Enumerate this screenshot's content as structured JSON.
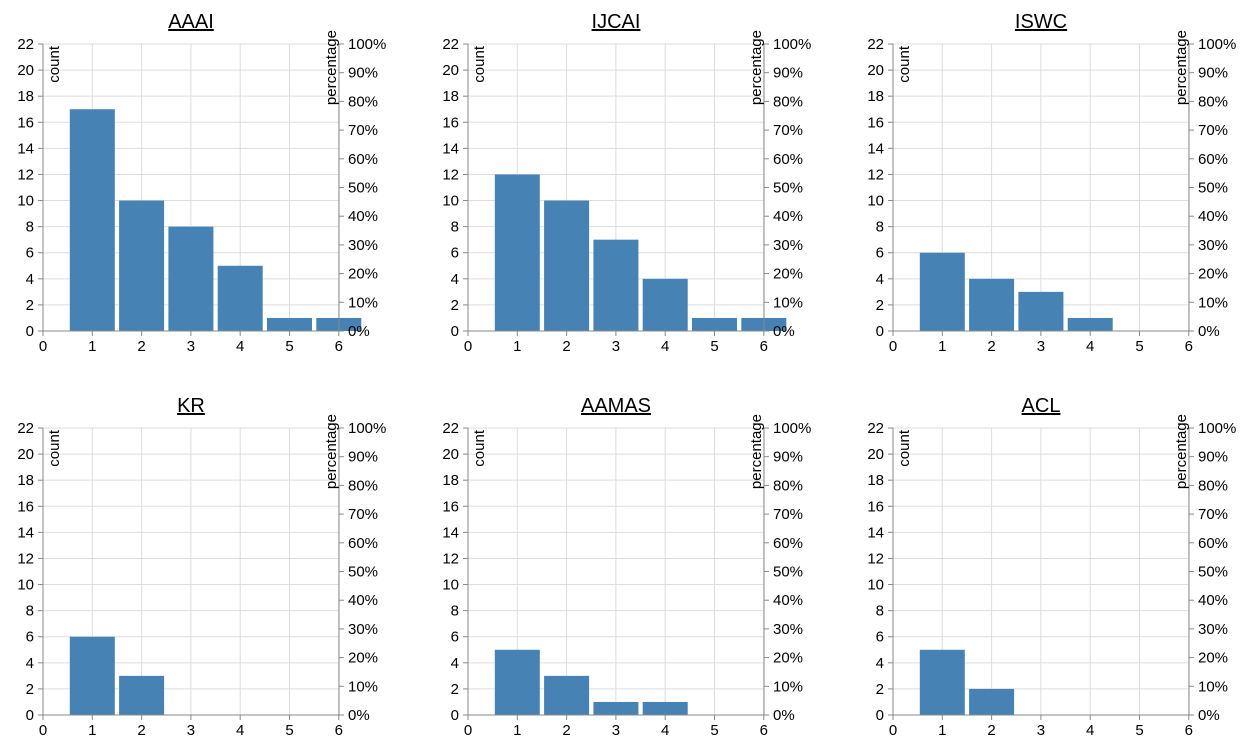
{
  "chart_data": [
    {
      "type": "bar",
      "title": "AAAI",
      "categories": [
        1,
        2,
        3,
        4,
        5,
        6
      ],
      "values": [
        17,
        10,
        8,
        5,
        1,
        1
      ],
      "xlabel": "",
      "ylabel": "count",
      "y2label": "percentage",
      "xlim": [
        0,
        6
      ],
      "xticks": [
        0,
        1,
        2,
        3,
        4,
        5,
        6
      ],
      "ylim": [
        0,
        22
      ],
      "yticks": [
        0,
        2,
        4,
        6,
        8,
        10,
        12,
        14,
        16,
        18,
        20,
        22
      ],
      "y2ticks": [
        "0%",
        "10%",
        "20%",
        "30%",
        "40%",
        "50%",
        "60%",
        "70%",
        "80%",
        "90%",
        "100%"
      ],
      "grid": true
    },
    {
      "type": "bar",
      "title": "IJCAI",
      "categories": [
        1,
        2,
        3,
        4,
        5,
        6
      ],
      "values": [
        12,
        10,
        7,
        4,
        1,
        1
      ],
      "xlabel": "",
      "ylabel": "count",
      "y2label": "percentage",
      "xlim": [
        0,
        6
      ],
      "xticks": [
        0,
        1,
        2,
        3,
        4,
        5,
        6
      ],
      "ylim": [
        0,
        22
      ],
      "yticks": [
        0,
        2,
        4,
        6,
        8,
        10,
        12,
        14,
        16,
        18,
        20,
        22
      ],
      "y2ticks": [
        "0%",
        "10%",
        "20%",
        "30%",
        "40%",
        "50%",
        "60%",
        "70%",
        "80%",
        "90%",
        "100%"
      ],
      "grid": true
    },
    {
      "type": "bar",
      "title": "ISWC",
      "categories": [
        1,
        2,
        3,
        4,
        5,
        6
      ],
      "values": [
        6,
        4,
        3,
        1,
        0,
        0
      ],
      "xlabel": "",
      "ylabel": "count",
      "y2label": "percentage",
      "xlim": [
        0,
        6
      ],
      "xticks": [
        0,
        1,
        2,
        3,
        4,
        5,
        6
      ],
      "ylim": [
        0,
        22
      ],
      "yticks": [
        0,
        2,
        4,
        6,
        8,
        10,
        12,
        14,
        16,
        18,
        20,
        22
      ],
      "y2ticks": [
        "0%",
        "10%",
        "20%",
        "30%",
        "40%",
        "50%",
        "60%",
        "70%",
        "80%",
        "90%",
        "100%"
      ],
      "grid": true
    },
    {
      "type": "bar",
      "title": "KR",
      "categories": [
        1,
        2,
        3,
        4,
        5,
        6
      ],
      "values": [
        6,
        3,
        0,
        0,
        0,
        0
      ],
      "xlabel": "",
      "ylabel": "count",
      "y2label": "percentage",
      "xlim": [
        0,
        6
      ],
      "xticks": [
        0,
        1,
        2,
        3,
        4,
        5,
        6
      ],
      "ylim": [
        0,
        22
      ],
      "yticks": [
        0,
        2,
        4,
        6,
        8,
        10,
        12,
        14,
        16,
        18,
        20,
        22
      ],
      "y2ticks": [
        "0%",
        "10%",
        "20%",
        "30%",
        "40%",
        "50%",
        "60%",
        "70%",
        "80%",
        "90%",
        "100%"
      ],
      "grid": true
    },
    {
      "type": "bar",
      "title": "AAMAS",
      "categories": [
        1,
        2,
        3,
        4,
        5,
        6
      ],
      "values": [
        5,
        3,
        1,
        1,
        0,
        0
      ],
      "xlabel": "",
      "ylabel": "count",
      "y2label": "percentage",
      "xlim": [
        0,
        6
      ],
      "xticks": [
        0,
        1,
        2,
        3,
        4,
        5,
        6
      ],
      "ylim": [
        0,
        22
      ],
      "yticks": [
        0,
        2,
        4,
        6,
        8,
        10,
        12,
        14,
        16,
        18,
        20,
        22
      ],
      "y2ticks": [
        "0%",
        "10%",
        "20%",
        "30%",
        "40%",
        "50%",
        "60%",
        "70%",
        "80%",
        "90%",
        "100%"
      ],
      "grid": true
    },
    {
      "type": "bar",
      "title": "ACL",
      "categories": [
        1,
        2,
        3,
        4,
        5,
        6
      ],
      "values": [
        5,
        2,
        0,
        0,
        0,
        0
      ],
      "xlabel": "",
      "ylabel": "count",
      "y2label": "percentage",
      "xlim": [
        0,
        6
      ],
      "xticks": [
        0,
        1,
        2,
        3,
        4,
        5,
        6
      ],
      "ylim": [
        0,
        22
      ],
      "yticks": [
        0,
        2,
        4,
        6,
        8,
        10,
        12,
        14,
        16,
        18,
        20,
        22
      ],
      "y2ticks": [
        "0%",
        "10%",
        "20%",
        "30%",
        "40%",
        "50%",
        "60%",
        "70%",
        "80%",
        "90%",
        "100%"
      ],
      "grid": true
    }
  ],
  "colors": {
    "bar": "#4682b4",
    "grid": "#dddddd",
    "axis": "#888888"
  }
}
